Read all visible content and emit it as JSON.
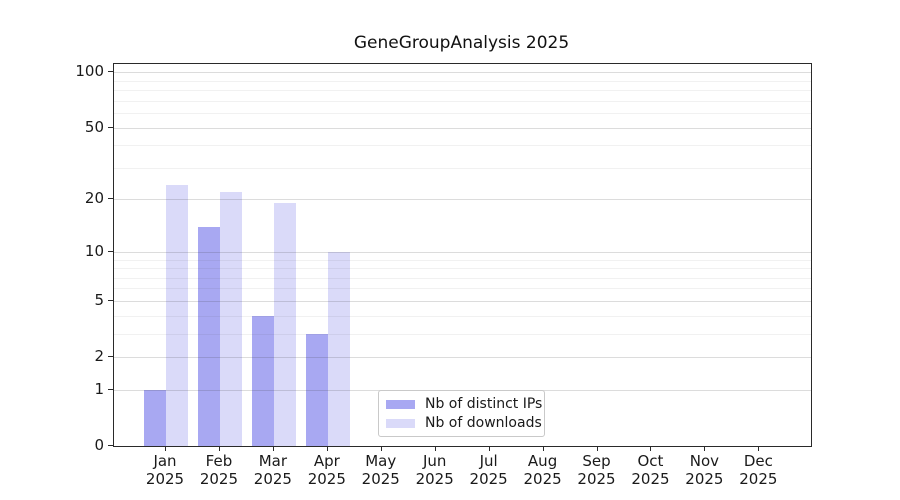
{
  "title": "GeneGroupAnalysis 2025",
  "colors": {
    "distinct_ips": "#a8a8f2",
    "downloads": "#dadaf9",
    "grid_major": "#d6d6d6",
    "grid_minor": "#ececec",
    "spine": "#2a2a2a",
    "background": "#ffffff"
  },
  "legend": {
    "items": [
      {
        "label": "Nb of distinct IPs",
        "series": "distinct_ips"
      },
      {
        "label": "Nb of downloads",
        "series": "downloads"
      }
    ],
    "position": "lower center"
  },
  "y_axis": {
    "scale": "log1p",
    "ticks": [
      0,
      1,
      2,
      5,
      10,
      20,
      50,
      100
    ],
    "minor_gridlines": [
      3,
      4,
      6,
      7,
      8,
      9,
      30,
      40,
      60,
      70,
      80,
      90
    ]
  },
  "x_axis": {
    "categories": [
      {
        "month": "Jan",
        "year": "2025"
      },
      {
        "month": "Feb",
        "year": "2025"
      },
      {
        "month": "Mar",
        "year": "2025"
      },
      {
        "month": "Apr",
        "year": "2025"
      },
      {
        "month": "May",
        "year": "2025"
      },
      {
        "month": "Jun",
        "year": "2025"
      },
      {
        "month": "Jul",
        "year": "2025"
      },
      {
        "month": "Aug",
        "year": "2025"
      },
      {
        "month": "Sep",
        "year": "2025"
      },
      {
        "month": "Oct",
        "year": "2025"
      },
      {
        "month": "Nov",
        "year": "2025"
      },
      {
        "month": "Dec",
        "year": "2025"
      }
    ]
  },
  "chart_data": {
    "type": "bar",
    "title": "GeneGroupAnalysis 2025",
    "xlabel": "",
    "ylabel": "",
    "categories": [
      "Jan 2025",
      "Feb 2025",
      "Mar 2025",
      "Apr 2025",
      "May 2025",
      "Jun 2025",
      "Jul 2025",
      "Aug 2025",
      "Sep 2025",
      "Oct 2025",
      "Nov 2025",
      "Dec 2025"
    ],
    "series": [
      {
        "name": "Nb of distinct IPs",
        "color": "#a8a8f2",
        "values": [
          1,
          14,
          4,
          3,
          0,
          0,
          0,
          0,
          0,
          0,
          0,
          0
        ]
      },
      {
        "name": "Nb of downloads",
        "color": "#dadaf9",
        "values": [
          24,
          22,
          19,
          10,
          0,
          0,
          0,
          0,
          0,
          0,
          0,
          0
        ]
      }
    ],
    "y_scale": "log1p",
    "y_ticks": [
      0,
      1,
      2,
      5,
      10,
      20,
      50,
      100
    ],
    "ylim": [
      0,
      110
    ],
    "grid": "horizontal",
    "legend_position": "lower center"
  }
}
